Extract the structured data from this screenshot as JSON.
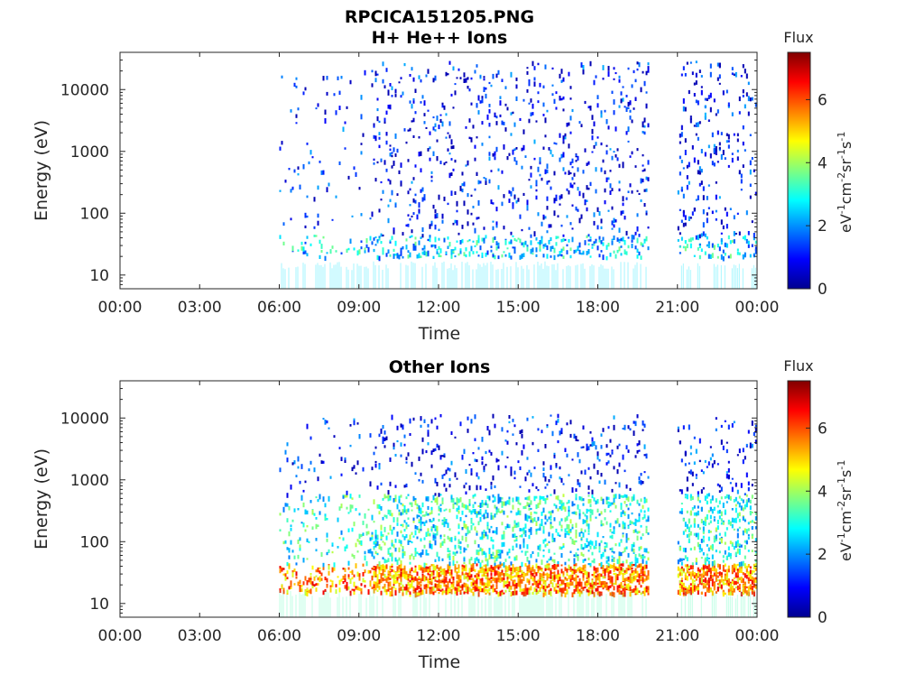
{
  "window": {
    "title_main": "RPCICA151205.PNG",
    "title_sub": "H+ He++ Ions"
  },
  "chart_data": [
    {
      "type": "heatmap",
      "title": "RPCICA151205.PNG\nH+ He++ Ions",
      "xlabel": "Time",
      "ylabel": "Energy (eV)",
      "yscale": "log",
      "ylim": [
        6,
        40000
      ],
      "x_ticks": [
        "00:00",
        "03:00",
        "06:00",
        "09:00",
        "12:00",
        "15:00",
        "18:00",
        "21:00",
        "00:00"
      ],
      "y_ticks": [
        "10",
        "100",
        "1000",
        "10000"
      ],
      "colorbar": {
        "label": "Flux",
        "unit": "eV-1cm-2sr-1s-1",
        "ticks": [
          "0",
          "2",
          "4",
          "6"
        ],
        "range": [
          0,
          7.5
        ],
        "colormap": "jet"
      },
      "data_coverage_hours": [
        [
          6.0,
          19.9
        ],
        [
          21.0,
          24.0
        ]
      ],
      "bands": [
        {
          "energy_eV": [
            20,
            45
          ],
          "flux_level": 2.5,
          "description": "dense low-energy band"
        },
        {
          "energy_eV": [
            45,
            30000
          ],
          "flux_level": 1,
          "description": "sparse high-energy"
        }
      ],
      "x": [],
      "y": []
    },
    {
      "type": "heatmap",
      "title": "Other Ions",
      "xlabel": "Time",
      "ylabel": "Energy (eV)",
      "yscale": "log",
      "ylim": [
        6,
        40000
      ],
      "x_ticks": [
        "00:00",
        "03:00",
        "06:00",
        "09:00",
        "12:00",
        "15:00",
        "18:00",
        "21:00",
        "00:00"
      ],
      "y_ticks": [
        "10",
        "100",
        "1000",
        "10000"
      ],
      "colorbar": {
        "label": "Flux",
        "unit": "eV-1cm-2sr-1s-1",
        "ticks": [
          "0",
          "2",
          "4",
          "6"
        ],
        "range": [
          0,
          7.5
        ],
        "colormap": "jet"
      },
      "data_coverage_hours": [
        [
          6.0,
          19.9
        ],
        [
          21.0,
          24.0
        ]
      ],
      "bands": [
        {
          "energy_eV": [
            15,
            45
          ],
          "flux_level": 5.5,
          "description": "strong band"
        },
        {
          "energy_eV": [
            45,
            600
          ],
          "flux_level": 3,
          "description": "moderate"
        },
        {
          "energy_eV": [
            600,
            12000
          ],
          "flux_level": 1,
          "description": "sparse"
        }
      ],
      "x": [],
      "y": []
    }
  ],
  "panel1": {
    "title_main": "RPCICA151205.PNG",
    "title_sub": "H+ He++ Ions",
    "ylabel": "Energy (eV)",
    "xlabel": "Time",
    "x_ticks": [
      "00:00",
      "03:00",
      "06:00",
      "09:00",
      "12:00",
      "15:00",
      "18:00",
      "21:00",
      "00:00"
    ],
    "y_ticks": [
      "10",
      "100",
      "1000",
      "10000"
    ],
    "cb_label": "Flux",
    "cb_ticks": [
      "0",
      "2",
      "4",
      "6"
    ]
  },
  "panel2": {
    "title": "Other Ions",
    "ylabel": "Energy (eV)",
    "xlabel": "Time",
    "x_ticks": [
      "00:00",
      "03:00",
      "06:00",
      "09:00",
      "12:00",
      "15:00",
      "18:00",
      "21:00",
      "00:00"
    ],
    "y_ticks": [
      "10",
      "100",
      "1000",
      "10000"
    ],
    "cb_label": "Flux",
    "cb_ticks": [
      "0",
      "2",
      "4",
      "6"
    ]
  }
}
